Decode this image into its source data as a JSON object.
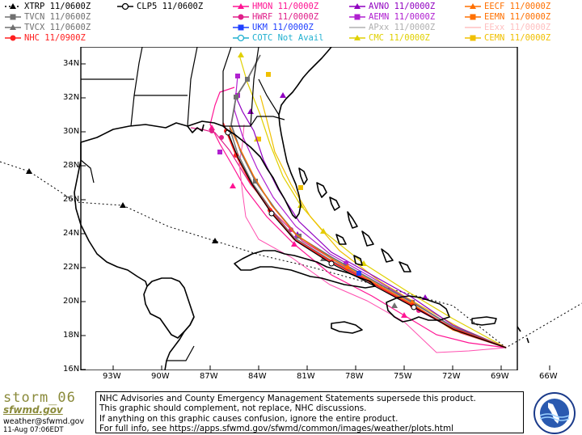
{
  "legend": [
    {
      "label": "XTRP 11/0600Z",
      "color": "#000000",
      "marker": "triangle",
      "dash": "2,3"
    },
    {
      "label": "TVCN 11/0600Z",
      "color": "#707070",
      "marker": "square",
      "dash": ""
    },
    {
      "label": "TVCX 11/0600Z",
      "color": "#707070",
      "marker": "triangle",
      "dash": ""
    },
    {
      "label": "NHC 11/0900Z",
      "color": "#ff2020",
      "marker": "circle",
      "dash": ""
    },
    {
      "label": "CLP5 11/0600Z",
      "color": "#000000",
      "marker": "circle-open",
      "dash": ""
    },
    {
      "label": "HMON 11/0000Z",
      "color": "#ff1493",
      "marker": "triangle",
      "dash": ""
    },
    {
      "label": "HWRF 11/0000Z",
      "color": "#e0208a",
      "marker": "circle",
      "dash": ""
    },
    {
      "label": "UKM 11/0000Z",
      "color": "#2040ff",
      "marker": "square",
      "dash": ""
    },
    {
      "label": "COTC Not Avail",
      "color": "#20b0d0",
      "marker": "circle-open",
      "dash": ""
    },
    {
      "label": "AVNO 11/0000Z",
      "color": "#9000c0",
      "marker": "triangle",
      "dash": ""
    },
    {
      "label": "AEMN 11/0000Z",
      "color": "#b020d0",
      "marker": "square",
      "dash": ""
    },
    {
      "label": "APxx 11/0000Z",
      "color": "#b0b0b0",
      "marker": "none",
      "dash": ""
    },
    {
      "label": "CMC 11/0000Z",
      "color": "#e0d000",
      "marker": "triangle",
      "dash": ""
    },
    {
      "label": "EECF 11/0000Z",
      "color": "#ff7000",
      "marker": "triangle",
      "dash": ""
    },
    {
      "label": "EEMN 11/0000Z",
      "color": "#ff7000",
      "marker": "square",
      "dash": ""
    },
    {
      "label": "EExx 11/0000Z",
      "color": "#ffc0c0",
      "marker": "none",
      "dash": ""
    },
    {
      "label": "CEMN 11/0000Z",
      "color": "#f0c000",
      "marker": "square",
      "dash": ""
    }
  ],
  "axes": {
    "lat_labels": [
      "34N",
      "32N",
      "30N",
      "28N",
      "26N",
      "24N",
      "22N",
      "20N",
      "18N",
      "16N"
    ],
    "lon_labels": [
      "93W",
      "90W",
      "87W",
      "84W",
      "81W",
      "78W",
      "75W",
      "72W",
      "69W",
      "66W"
    ]
  },
  "footer": {
    "brand_name": "storm_06",
    "brand_site": "sfwmd.gov",
    "email": "weather@sfwmd.gov",
    "timestamp": "11-Aug 07:06EDT",
    "notice_lines": [
      "NHC Advisories and County Emergency Management Statements supersede this product.",
      "This graphic should complement, not replace, NHC discussions.",
      "If anything on this graphic causes confusion, ignore the entire product.",
      "For full info, see  https://apps.sfwmd.gov/sfwmd/common/images/weather/plots.html"
    ]
  },
  "colors": {
    "land_outline": "#000000",
    "background": "#ffffff"
  }
}
